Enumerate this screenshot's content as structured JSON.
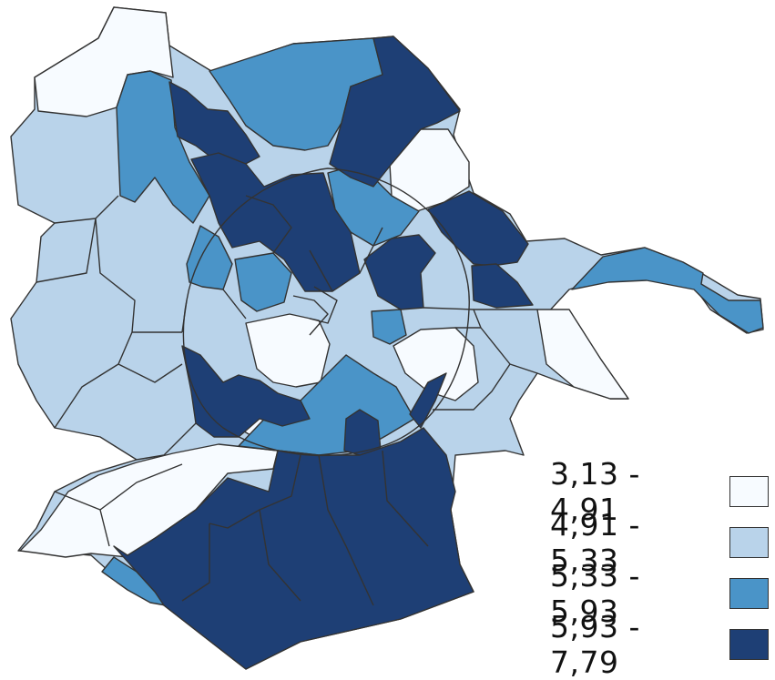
{
  "colors": {
    "class_1": "#f7fbff",
    "class_2": "#b9d3ea",
    "class_3": "#4a94c8",
    "class_4": "#1e3f75",
    "border": "#333333"
  },
  "legend": {
    "items": [
      {
        "label": "3,13 - 4,91",
        "color": "#f7fbff"
      },
      {
        "label": "4,91 - 5,33",
        "color": "#b9d3ea"
      },
      {
        "label": "5,33 - 5,93",
        "color": "#4a94c8"
      },
      {
        "label": "5,93 - 7,79",
        "color": "#1e3f75"
      }
    ]
  }
}
